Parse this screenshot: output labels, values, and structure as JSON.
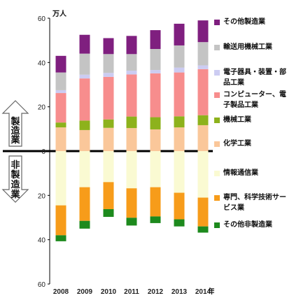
{
  "chart_data": {
    "type": "bar",
    "stacked": true,
    "diverging": true,
    "unit_label": "万人",
    "x_suffix": "年",
    "categories": [
      "2008",
      "2009",
      "2010",
      "2011",
      "2012",
      "2013",
      "2014"
    ],
    "ylim": [
      -60,
      60
    ],
    "yticks": [
      60,
      40,
      20,
      0,
      20,
      40,
      60
    ],
    "grid": false,
    "legend_position": "right",
    "upper_label": [
      "製",
      "造",
      "業"
    ],
    "lower_label": [
      "非",
      "製",
      "造",
      "業"
    ],
    "series": [
      {
        "name": "その他製造業",
        "group": "manufacturing",
        "color": "#7f1f7f",
        "values": [
          7.5,
          8.5,
          7.2,
          8.2,
          8.5,
          9.8,
          9.8
        ]
      },
      {
        "name": "輸送用機械工業",
        "group": "manufacturing",
        "color": "#c4c4c4",
        "values": [
          8.0,
          9.5,
          8.5,
          7.5,
          9.5,
          10.0,
          10.5
        ]
      },
      {
        "name": "電子器具・装置・部品工業",
        "group": "manufacturing",
        "color": "#ccccf2",
        "values": [
          1.3,
          1.7,
          1.8,
          1.7,
          1.5,
          2.2,
          1.7
        ]
      },
      {
        "name": "コンピューター、電子製品工業",
        "group": "manufacturing",
        "color": "#f78d8d",
        "values": [
          13.3,
          19.0,
          19.2,
          19.0,
          19.8,
          19.8,
          20.8
        ]
      },
      {
        "name": "機械工業",
        "group": "manufacturing",
        "color": "#8db21c",
        "values": [
          2.2,
          4.3,
          3.8,
          5.2,
          5.5,
          5.0,
          4.5
        ]
      },
      {
        "name": "化学工業",
        "group": "manufacturing",
        "color": "#fac79a",
        "values": [
          10.7,
          9.5,
          10.5,
          10.4,
          9.8,
          10.7,
          11.7
        ]
      },
      {
        "name": "情報通信業",
        "group": "non-manufacturing",
        "color": "#fafad2",
        "values": [
          24.5,
          16.3,
          14.0,
          16.8,
          16.3,
          18.8,
          21.0
        ]
      },
      {
        "name": "専門、科学技術サービス業",
        "group": "non-manufacturing",
        "color": "#f79c1a",
        "values": [
          13.5,
          15.2,
          12.2,
          13.3,
          13.2,
          12.0,
          13.0
        ]
      },
      {
        "name": "その他非製造業",
        "group": "non-manufacturing",
        "color": "#1d8a1d",
        "values": [
          2.7,
          3.5,
          3.5,
          3.5,
          3.0,
          3.2,
          2.8
        ]
      }
    ]
  }
}
